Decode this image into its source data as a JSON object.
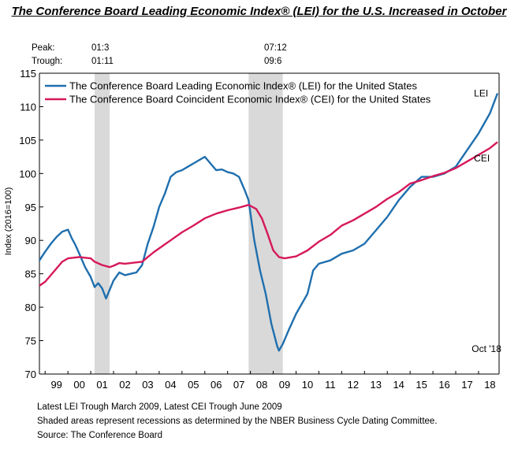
{
  "title": "The Conference Board Leading Economic Index® (LEI) for the U.S. Increased in October",
  "cycle_labels": {
    "peak_label": "Peak:",
    "trough_label": "Trough:",
    "peaks": [
      "01:3",
      "07:12"
    ],
    "troughs": [
      "01:11",
      "09:6"
    ]
  },
  "notes": [
    "Latest LEI Trough March 2009, Latest CEI Trough June 2009",
    "Shaded areas represent recessions as determined by the NBER Business Cycle Dating Committee.",
    "Source: The Conference Board"
  ],
  "colors": {
    "lei": "#1f6fae",
    "cei": "#d6185a",
    "recession": "#d9d9d9",
    "axis": "#000000"
  },
  "chart_data": {
    "type": "line",
    "title": "The Conference Board Leading Economic Index® (LEI) for the U.S. Increased in October",
    "xlabel": "",
    "ylabel": "Index (2016=100)",
    "xlim": [
      1998.75,
      2018.9
    ],
    "ylim": [
      70,
      115
    ],
    "y_ticks": [
      70,
      75,
      80,
      85,
      90,
      95,
      100,
      105,
      110,
      115
    ],
    "x_tick_labels": [
      "99",
      "00",
      "01",
      "02",
      "03",
      "04",
      "05",
      "06",
      "07",
      "08",
      "09",
      "10",
      "11",
      "12",
      "13",
      "14",
      "15",
      "16",
      "17",
      "18"
    ],
    "grid": false,
    "legend_position": "top-left",
    "recessions": [
      [
        2001.17,
        2001.83
      ],
      [
        2007.92,
        2009.42
      ]
    ],
    "annotations": [
      {
        "text": "LEI",
        "x": 2017.8,
        "y": 111.5
      },
      {
        "text": "CEI",
        "x": 2017.8,
        "y": 101.8
      },
      {
        "text": "Oct '18",
        "x": 2017.7,
        "y": 73.3
      }
    ],
    "series": [
      {
        "name": "The Conference Board Leading Economic Index® (LEI) for the United States",
        "short_name": "LEI",
        "x": [
          1998.75,
          1999.0,
          1999.25,
          1999.5,
          1999.75,
          2000.0,
          2000.17,
          2000.33,
          2000.5,
          2000.75,
          2001.0,
          2001.17,
          2001.33,
          2001.5,
          2001.67,
          2001.83,
          2002.0,
          2002.25,
          2002.5,
          2002.75,
          2003.0,
          2003.25,
          2003.5,
          2003.75,
          2004.0,
          2004.25,
          2004.5,
          2004.75,
          2005.0,
          2005.25,
          2005.5,
          2005.75,
          2006.0,
          2006.25,
          2006.5,
          2006.75,
          2007.0,
          2007.25,
          2007.5,
          2007.75,
          2007.92,
          2008.17,
          2008.42,
          2008.67,
          2008.92,
          2009.17,
          2009.25,
          2009.42,
          2009.67,
          2010.0,
          2010.5,
          2010.75,
          2011.0,
          2011.5,
          2012.0,
          2012.5,
          2013.0,
          2013.5,
          2014.0,
          2014.5,
          2015.0,
          2015.5,
          2016.0,
          2016.5,
          2017.0,
          2017.5,
          2018.0,
          2018.5,
          2018.83
        ],
        "y": [
          87.0,
          88.3,
          89.5,
          90.5,
          91.3,
          91.6,
          90.3,
          89.3,
          88.0,
          86.0,
          84.5,
          83.0,
          83.6,
          82.8,
          81.3,
          82.6,
          84.0,
          85.2,
          84.8,
          85.0,
          85.2,
          86.3,
          89.5,
          92.0,
          95.0,
          97.0,
          99.5,
          100.2,
          100.5,
          101.0,
          101.5,
          102.0,
          102.5,
          101.5,
          100.5,
          100.6,
          100.2,
          100.0,
          99.5,
          97.5,
          96.0,
          90.0,
          85.5,
          82.0,
          77.5,
          74.2,
          73.5,
          74.5,
          76.5,
          79.0,
          82.0,
          85.5,
          86.5,
          87.0,
          88.0,
          88.5,
          89.5,
          91.5,
          93.5,
          96.0,
          98.0,
          99.5,
          99.5,
          100.0,
          101.0,
          103.5,
          106.0,
          109.0,
          112.0
        ]
      },
      {
        "name": "The Conference Board Coincident Economic Index® (CEI) for the United States",
        "short_name": "CEI",
        "x": [
          1998.75,
          1999.0,
          1999.25,
          1999.5,
          1999.75,
          2000.0,
          2000.5,
          2000.75,
          2001.0,
          2001.17,
          2001.5,
          2001.83,
          2002.0,
          2002.25,
          2002.5,
          2002.75,
          2003.0,
          2003.25,
          2003.5,
          2003.75,
          2004.0,
          2004.5,
          2005.0,
          2005.5,
          2006.0,
          2006.5,
          2007.0,
          2007.5,
          2007.92,
          2008.25,
          2008.5,
          2008.75,
          2009.0,
          2009.25,
          2009.5,
          2010.0,
          2010.5,
          2011.0,
          2011.5,
          2012.0,
          2012.5,
          2013.0,
          2013.5,
          2014.0,
          2014.5,
          2015.0,
          2015.5,
          2016.0,
          2016.5,
          2017.0,
          2017.5,
          2018.0,
          2018.5,
          2018.83
        ],
        "y": [
          83.2,
          83.8,
          84.8,
          85.8,
          86.8,
          87.3,
          87.5,
          87.4,
          87.3,
          86.8,
          86.3,
          86.0,
          86.2,
          86.6,
          86.5,
          86.6,
          86.7,
          86.8,
          87.5,
          88.2,
          88.8,
          90.0,
          91.2,
          92.2,
          93.3,
          94.0,
          94.5,
          94.9,
          95.3,
          94.7,
          93.3,
          91.0,
          88.5,
          87.5,
          87.3,
          87.6,
          88.5,
          89.8,
          90.8,
          92.2,
          93.0,
          94.0,
          95.0,
          96.2,
          97.2,
          98.5,
          99.0,
          99.6,
          100.1,
          100.8,
          101.8,
          102.8,
          103.8,
          104.7
        ]
      }
    ]
  }
}
